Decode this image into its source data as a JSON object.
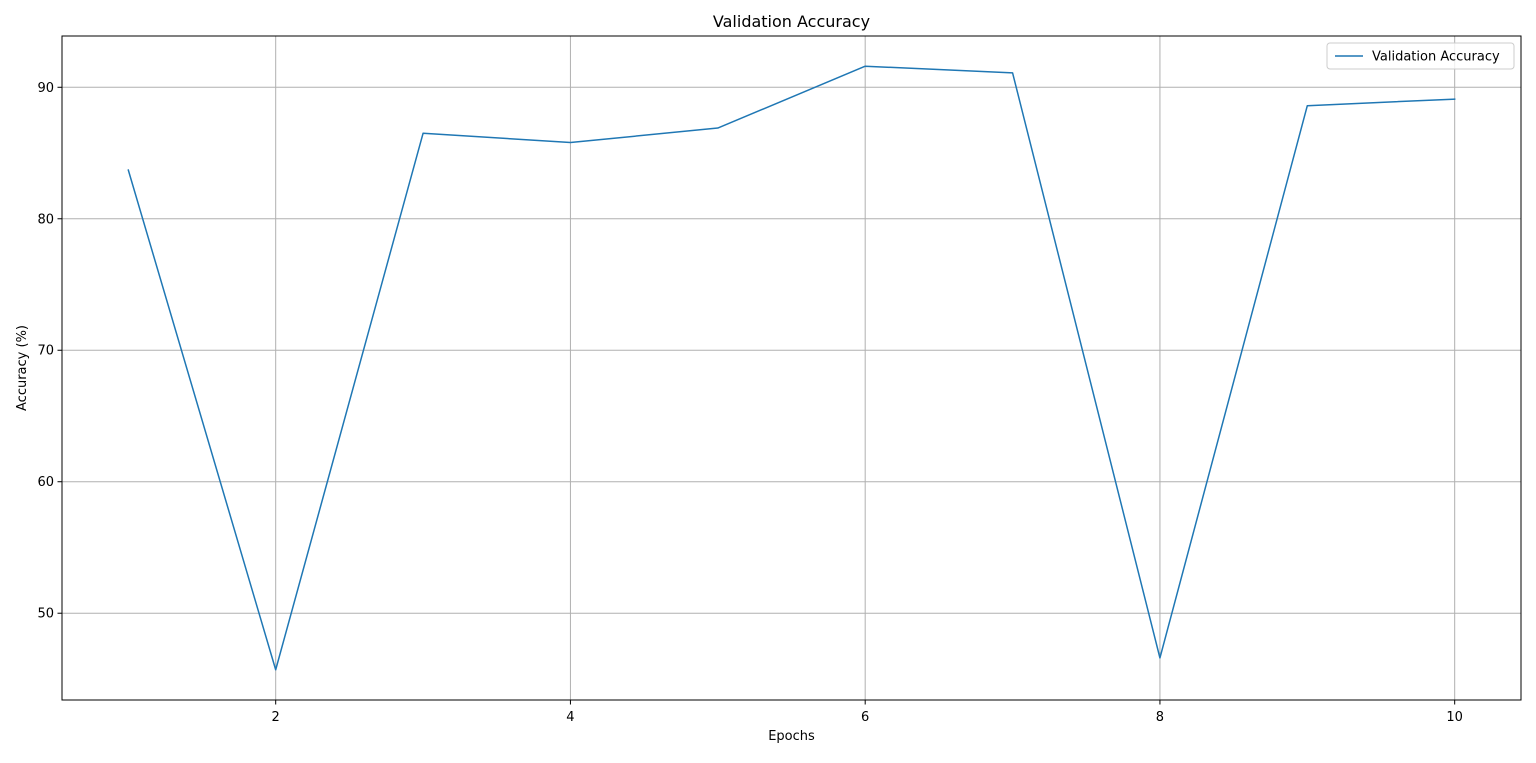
{
  "chart_data": {
    "type": "line",
    "title": "Validation Accuracy",
    "xlabel": "Epochs",
    "ylabel": "Accuracy (%)",
    "x": [
      1,
      2,
      3,
      4,
      5,
      6,
      7,
      8,
      9,
      10
    ],
    "series": [
      {
        "name": "Validation Accuracy",
        "color": "#1f77b4",
        "values": [
          83.7,
          45.7,
          86.5,
          85.8,
          86.9,
          91.6,
          91.1,
          46.6,
          88.6,
          89.1
        ]
      }
    ],
    "xlim": [
      0.55,
      10.45
    ],
    "ylim": [
      43.4,
      93.9
    ],
    "xticks": [
      2,
      4,
      6,
      8,
      10
    ],
    "yticks": [
      50,
      60,
      70,
      80,
      90
    ],
    "grid": true,
    "legend_position": "top-right"
  }
}
